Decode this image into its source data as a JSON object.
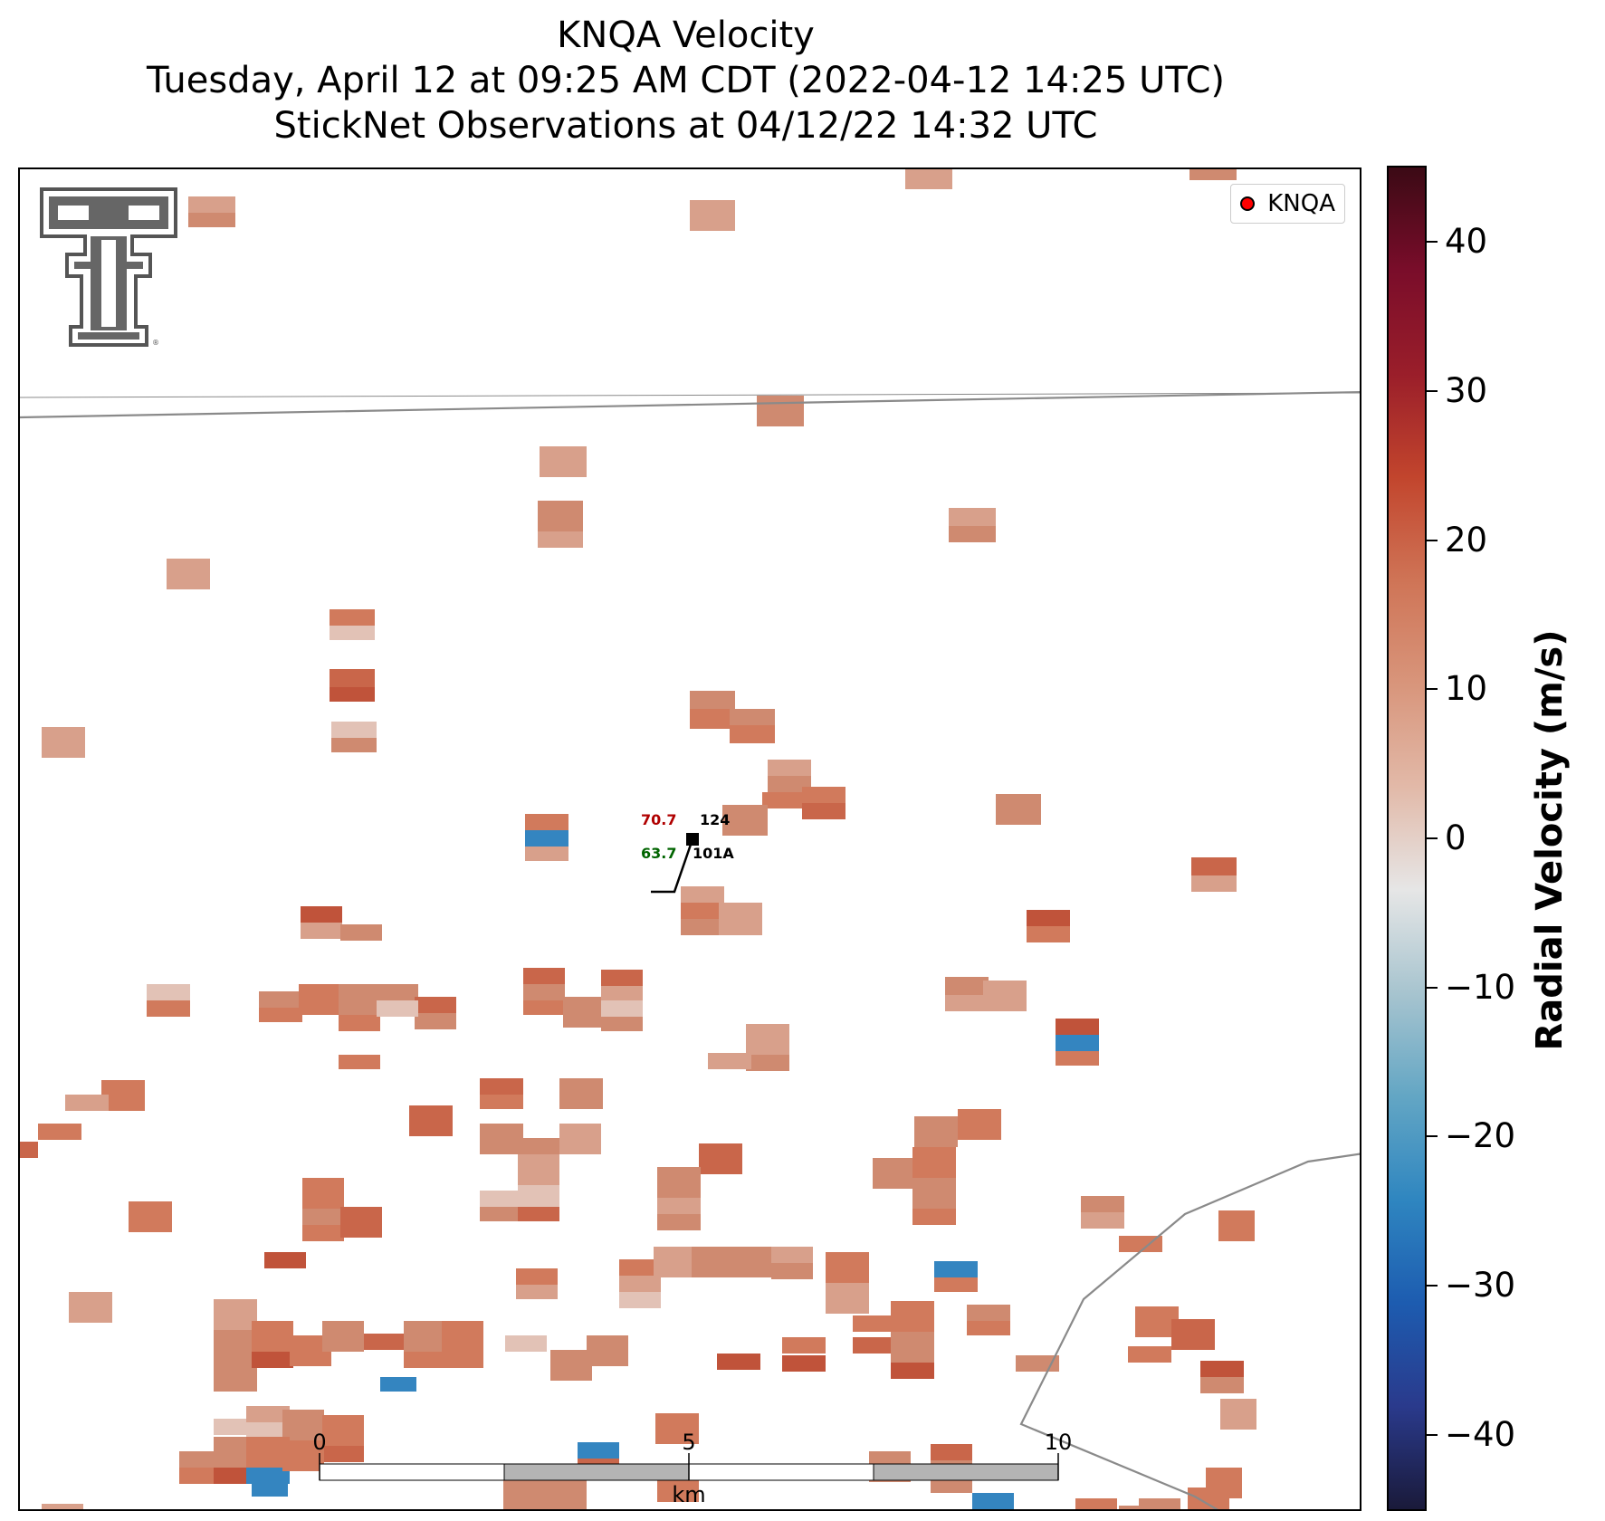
{
  "title": {
    "line1": "KNQA Velocity",
    "line2": "Tuesday, April 12 at 09:25 AM CDT (2022-04-12 14:25 UTC)",
    "line3": "StickNet Observations at 04/12/22 14:32 UTC"
  },
  "legend": {
    "label": "KNQA",
    "marker_color": "#ff0000"
  },
  "colorbar": {
    "label": "Radial Velocity (m/s)",
    "min": -45,
    "max": 45,
    "ticks": [
      {
        "value": 40,
        "label": "40"
      },
      {
        "value": 30,
        "label": "30"
      },
      {
        "value": 20,
        "label": "20"
      },
      {
        "value": 10,
        "label": "10"
      },
      {
        "value": 0,
        "label": "0"
      },
      {
        "value": -10,
        "label": "−10"
      },
      {
        "value": -20,
        "label": "−20"
      },
      {
        "value": -30,
        "label": "−30"
      },
      {
        "value": -40,
        "label": "−40"
      }
    ],
    "colors": [
      "#1a1a3a",
      "#2a3a8c",
      "#1d5cb0",
      "#2f86c0",
      "#63a6c4",
      "#a7c4cf",
      "#e6e6e6",
      "#e2b9a8",
      "#d8957b",
      "#cf7456",
      "#c2452d",
      "#9a1e2a",
      "#7a0d2a",
      "#3b0a15"
    ]
  },
  "station": {
    "temperature": "70.7",
    "dewpoint": "63.7",
    "id_top": "124",
    "id_bottom": "101A",
    "temp_color": "#b00000",
    "dew_color": "#006400"
  },
  "scale_bar": {
    "labels": [
      "0",
      "5",
      "10"
    ],
    "unit": "km"
  },
  "logo": {
    "icon": "texas-tech-double-t-logo"
  }
}
